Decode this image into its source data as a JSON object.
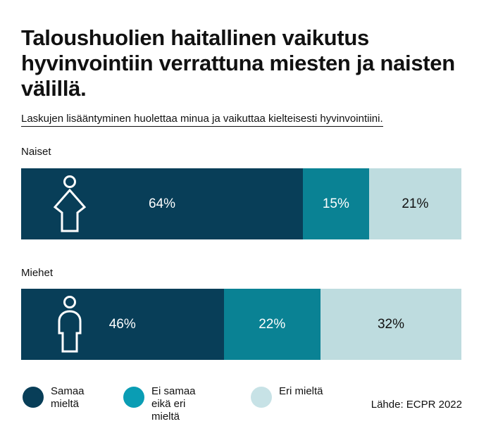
{
  "title": "Taloushuolien haitallinen vaikutus hyvinvointiin verrattuna miesten ja naisten välillä.",
  "subtitle": "Laskujen lisääntyminen huolettaa minua ja vaikuttaa kielteisesti hyvinvointiini.",
  "source": "Lähde: ECPR 2022",
  "colors": {
    "agree": "#083e58",
    "neutral": "#0a8294",
    "disagree": "#bedcdf"
  },
  "legend": [
    {
      "label": "Samaa mieltä",
      "color": "#083e58"
    },
    {
      "label": "Ei samaa eikä eri mieltä",
      "color": "#0a9db4"
    },
    {
      "label": "Eri mieltä",
      "color": "#c7e2e6"
    }
  ],
  "chart_data": {
    "type": "bar",
    "stacked": true,
    "orientation": "horizontal",
    "title": "Taloushuolien haitallinen vaikutus hyvinvointiin verrattuna miesten ja naisten välillä.",
    "subtitle": "Laskujen lisääntyminen huolettaa minua ja vaikuttaa kielteisesti hyvinvointiini.",
    "categories": [
      "Naiset",
      "Miehet"
    ],
    "series": [
      {
        "name": "Samaa mieltä",
        "values": [
          64,
          46
        ],
        "labels": [
          "64%",
          "46%"
        ]
      },
      {
        "name": "Ei samaa eikä eri mieltä",
        "values": [
          15,
          22
        ],
        "labels": [
          "15%",
          "22%"
        ]
      },
      {
        "name": "Eri mieltä",
        "values": [
          21,
          32
        ],
        "labels": [
          "21%",
          "32%"
        ]
      }
    ],
    "xlim": [
      0,
      100
    ],
    "grid": false,
    "legend_position": "bottom"
  }
}
